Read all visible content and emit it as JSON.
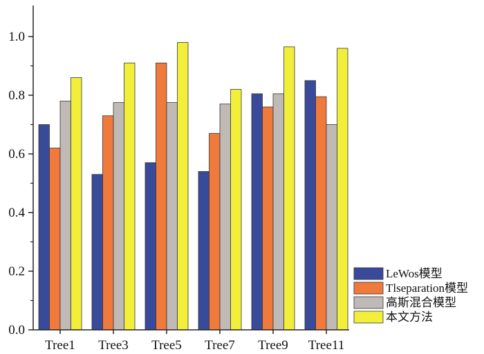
{
  "chart_data": {
    "type": "bar",
    "categories": [
      "Tree1",
      "Tree3",
      "Tree5",
      "Tree7",
      "Tree9",
      "Tree11"
    ],
    "series": [
      {
        "name": "LeWos模型",
        "color": "#3a4a9a",
        "values": [
          0.7,
          0.53,
          0.57,
          0.54,
          0.805,
          0.85
        ]
      },
      {
        "name": "Tlseparation模型",
        "color": "#f07a3c",
        "values": [
          0.62,
          0.73,
          0.91,
          0.67,
          0.76,
          0.795
        ]
      },
      {
        "name": "高斯混合模型",
        "color": "#bfbab5",
        "values": [
          0.78,
          0.775,
          0.775,
          0.77,
          0.805,
          0.7
        ]
      },
      {
        "name": "本文方法",
        "color": "#f2ef3a",
        "values": [
          0.86,
          0.91,
          0.98,
          0.82,
          0.965,
          0.96
        ]
      }
    ],
    "yticks": [
      "0.0",
      "0.2",
      "0.4",
      "0.6",
      "0.8",
      "1.0"
    ],
    "ylim": [
      0,
      1.1
    ],
    "grid": false,
    "legend_position": "bottom-right",
    "title": "",
    "xlabel": "",
    "ylabel": ""
  }
}
